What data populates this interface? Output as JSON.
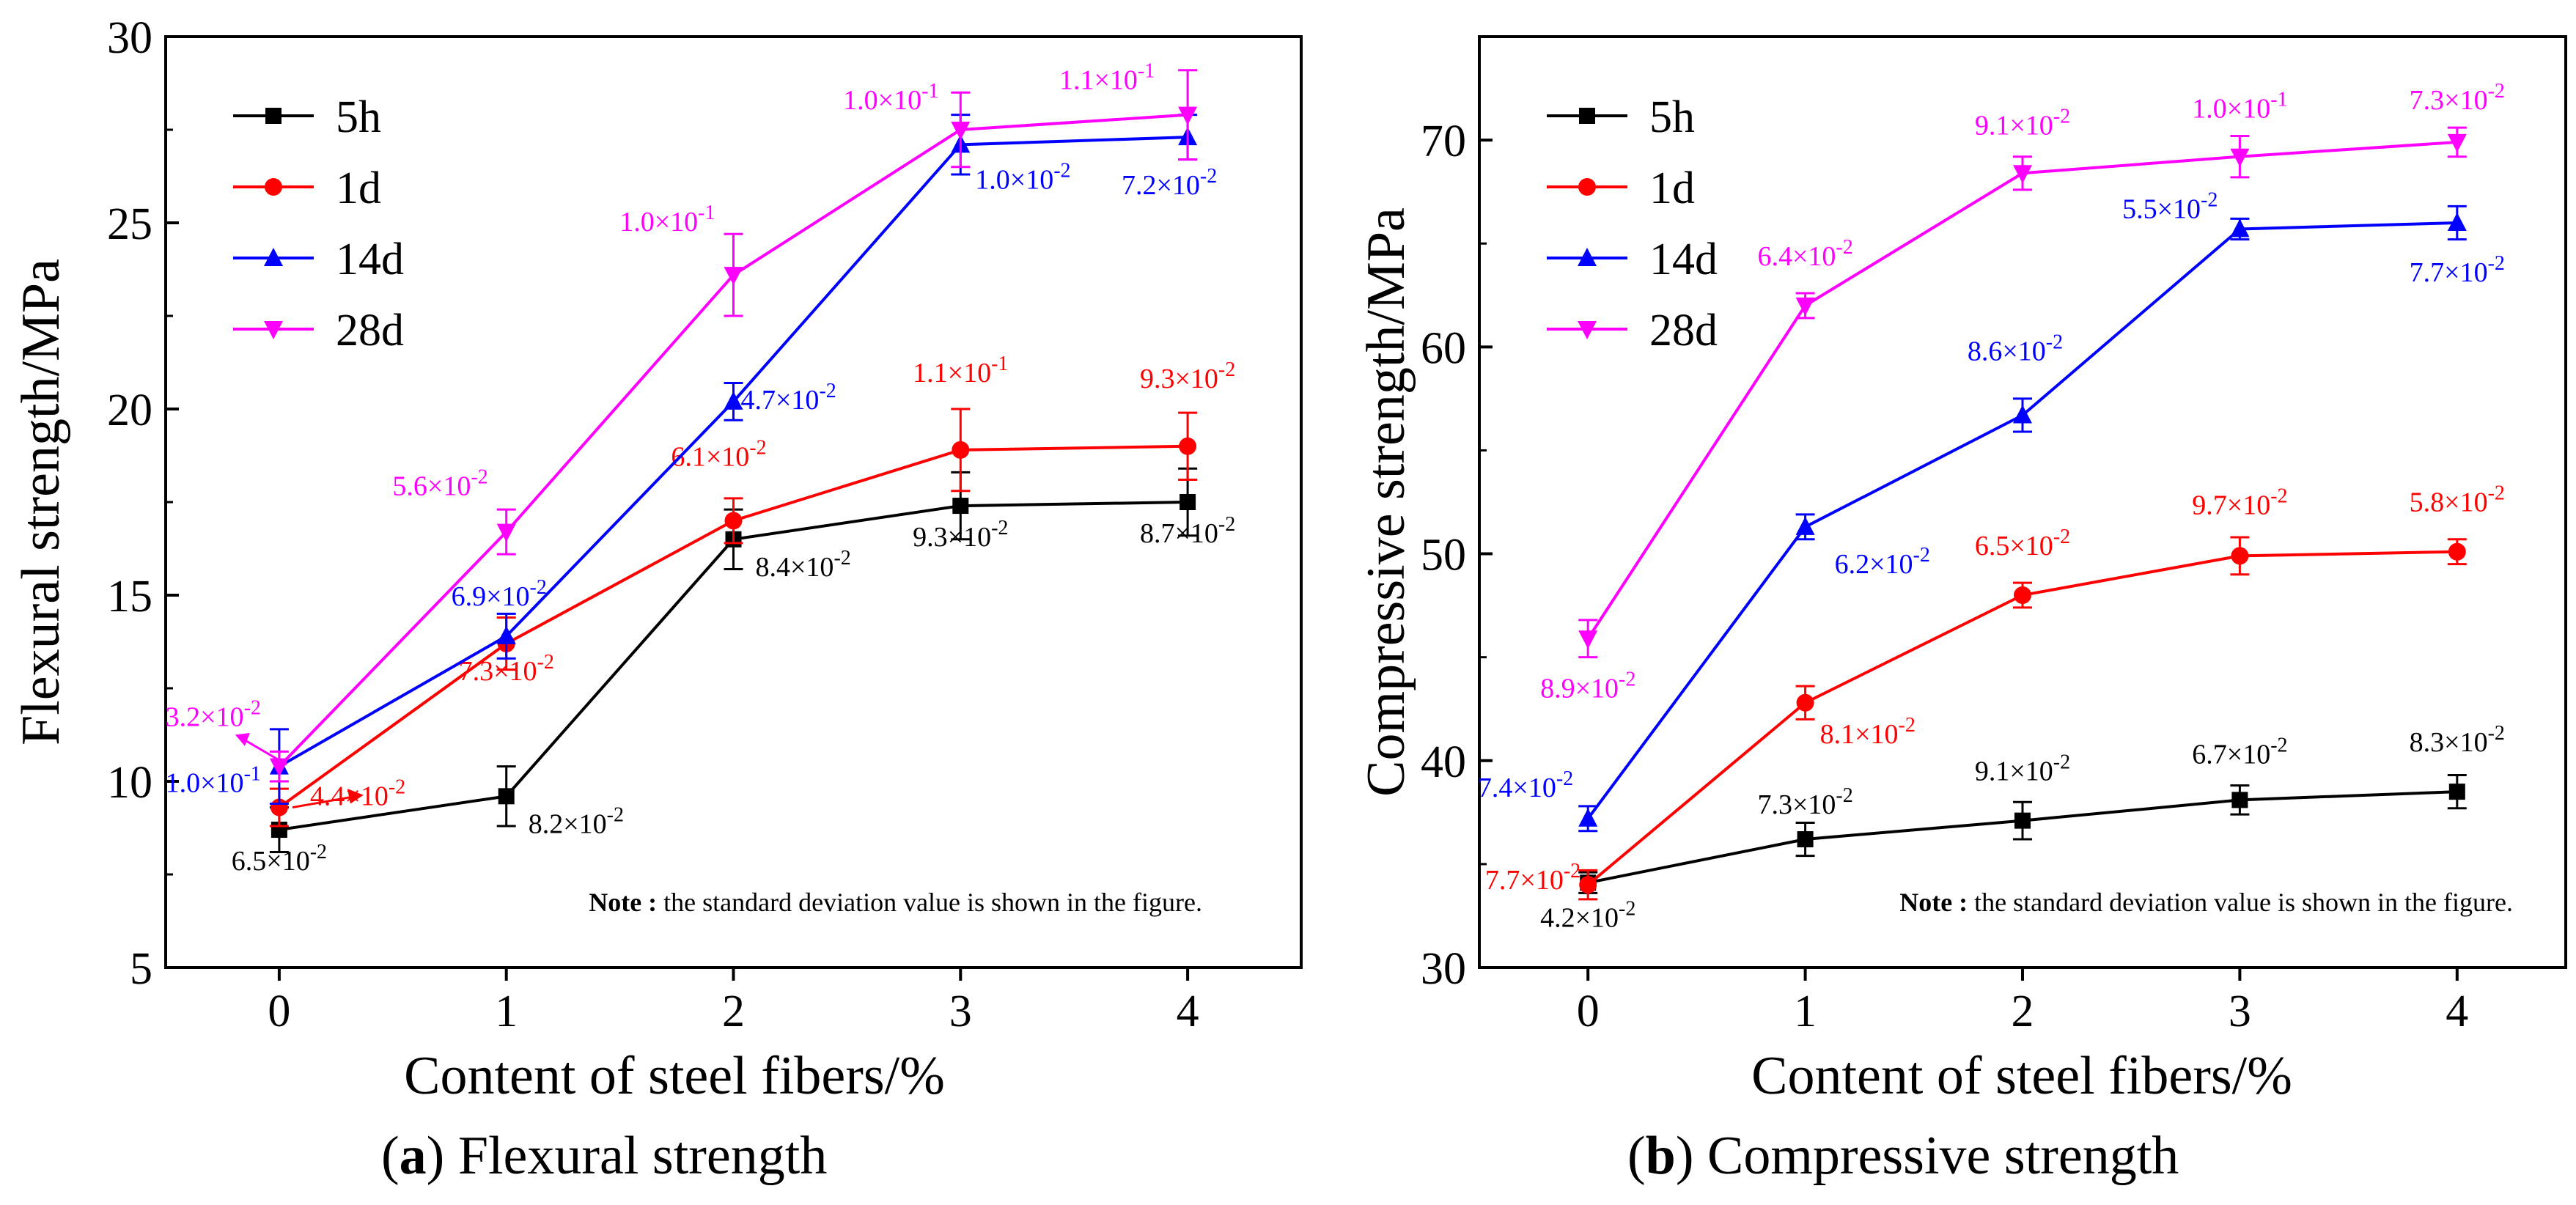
{
  "chart_data": [
    {
      "type": "line",
      "title": "(a) Flexural strength",
      "caption": {
        "letter": "a",
        "text": "Flexural strength"
      },
      "xlabel": "Content of steel fibers/%",
      "ylabel": "Flexural strength/MPa",
      "x": [
        0,
        1,
        2,
        3,
        4
      ],
      "xlim": [
        -0.5,
        4.5
      ],
      "ylim": [
        5,
        30
      ],
      "yticks": [
        5,
        10,
        15,
        20,
        25,
        30
      ],
      "note": {
        "bold": "Note :",
        "text": " the standard deviation value is shown in the figure."
      },
      "legend": "top-left",
      "series": [
        {
          "name": "5h",
          "color": "#000000",
          "marker": "square",
          "values": [
            8.7,
            9.6,
            16.5,
            17.4,
            17.5
          ],
          "errors": [
            0.6,
            0.8,
            0.8,
            0.9,
            0.9
          ],
          "sd_labels": [
            "6.5×10-2",
            "8.2×10-2",
            "8.4×10-2",
            "9.3×10-2",
            "8.7×10-2"
          ]
        },
        {
          "name": "1d",
          "color": "#ff0000",
          "marker": "circle",
          "values": [
            9.3,
            13.7,
            17.0,
            18.9,
            19.0
          ],
          "errors": [
            0.5,
            0.7,
            0.6,
            1.1,
            0.9
          ],
          "sd_labels": [
            "4.4×10-2",
            "7.3×10-2",
            "6.1×10-2",
            "1.1×10-1",
            "9.3×10-2"
          ]
        },
        {
          "name": "14d",
          "color": "#0000ff",
          "marker": "triangle-up",
          "values": [
            10.4,
            13.9,
            20.2,
            27.1,
            27.3
          ],
          "errors": [
            1.0,
            0.6,
            0.5,
            0.8,
            0.6
          ],
          "sd_labels": [
            "1.0×10-1",
            "6.9×10-2",
            "4.7×10-2",
            "1.0×10-2",
            "7.2×10-2"
          ]
        },
        {
          "name": "28d",
          "color": "#ff00ff",
          "marker": "triangle-down",
          "values": [
            10.4,
            16.7,
            23.6,
            27.5,
            27.9
          ],
          "errors": [
            0.4,
            0.6,
            1.1,
            1.0,
            1.2
          ],
          "sd_labels": [
            "3.2×10-2",
            "5.6×10-2",
            "1.0×10-1",
            "1.0×10-1",
            "1.1×10-1"
          ]
        }
      ]
    },
    {
      "type": "line",
      "title": "(b) Compressive strength",
      "caption": {
        "letter": "b",
        "text": "Compressive strength"
      },
      "xlabel": "Content of steel fibers/%",
      "ylabel": "Compressive strength/MPa",
      "x": [
        0,
        1,
        2,
        3,
        4
      ],
      "xlim": [
        -0.5,
        4.5
      ],
      "ylim": [
        30,
        75
      ],
      "yticks": [
        30,
        40,
        50,
        60,
        70
      ],
      "note": {
        "bold": "Note :",
        "text": " the standard deviation value is shown in the figure."
      },
      "legend": "top-left",
      "series": [
        {
          "name": "5h",
          "color": "#000000",
          "marker": "square",
          "values": [
            34.1,
            36.2,
            37.1,
            38.1,
            38.5
          ],
          "errors": [
            0.5,
            0.8,
            0.9,
            0.7,
            0.8
          ],
          "sd_labels": [
            "4.2×10-2",
            "7.3×10-2",
            "9.1×10-2",
            "6.7×10-2",
            "8.3×10-2"
          ]
        },
        {
          "name": "1d",
          "color": "#ff0000",
          "marker": "circle",
          "values": [
            34.0,
            42.8,
            48.0,
            49.9,
            50.1
          ],
          "errors": [
            0.7,
            0.8,
            0.6,
            0.9,
            0.6
          ],
          "sd_labels": [
            "7.7×10-2",
            "8.1×10-2",
            "6.5×10-2",
            "9.7×10-2",
            "5.8×10-2"
          ]
        },
        {
          "name": "14d",
          "color": "#0000ff",
          "marker": "triangle-up",
          "values": [
            37.2,
            51.3,
            56.7,
            65.7,
            66.0
          ],
          "errors": [
            0.6,
            0.6,
            0.8,
            0.5,
            0.8
          ],
          "sd_labels": [
            "7.4×10-2",
            "6.2×10-2",
            "8.6×10-2",
            "5.5×10-2",
            "7.7×10-2"
          ]
        },
        {
          "name": "28d",
          "color": "#ff00ff",
          "marker": "triangle-down",
          "values": [
            45.9,
            62.0,
            68.4,
            69.2,
            69.9
          ],
          "errors": [
            0.9,
            0.6,
            0.8,
            1.0,
            0.7
          ],
          "sd_labels": [
            "8.9×10-2",
            "6.4×10-2",
            "9.1×10-2",
            "1.0×10-1",
            "7.3×10-2"
          ]
        }
      ]
    }
  ]
}
